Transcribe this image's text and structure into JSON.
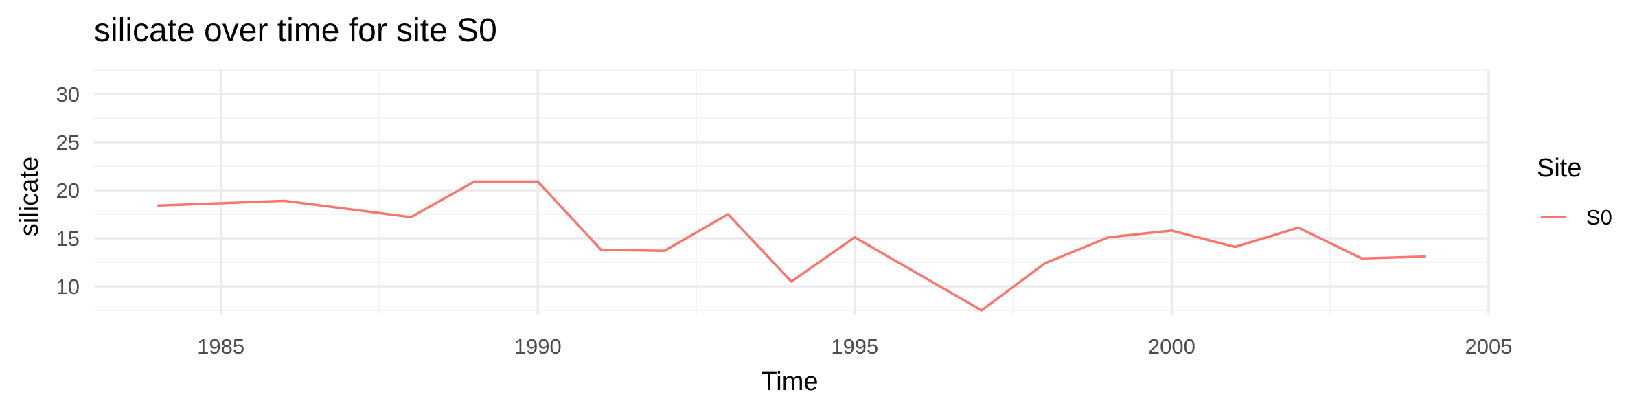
{
  "chart_data": {
    "type": "line",
    "title": "silicate over time for site S0",
    "xlabel": "Time",
    "ylabel": "silicate",
    "xlim": [
      1983,
      2005
    ],
    "ylim": [
      7,
      32.5
    ],
    "x_ticks": [
      1985,
      1990,
      1995,
      2000,
      2005
    ],
    "y_ticks": [
      10,
      15,
      20,
      25,
      30
    ],
    "grid": true,
    "legend": {
      "title": "Site",
      "position": "right"
    },
    "series": [
      {
        "name": "S0",
        "color": "#F8766D",
        "x": [
          1984,
          1986,
          1988,
          1989,
          1990,
          1991,
          1992,
          1993,
          1994,
          1995,
          1997,
          1998,
          1999,
          2000,
          2001,
          2002,
          2003,
          2004
        ],
        "values": [
          18.4,
          18.9,
          17.2,
          20.9,
          20.9,
          13.8,
          13.7,
          17.5,
          10.5,
          15.1,
          7.5,
          12.4,
          15.1,
          15.8,
          14.1,
          16.1,
          12.9,
          13.1
        ]
      }
    ]
  }
}
